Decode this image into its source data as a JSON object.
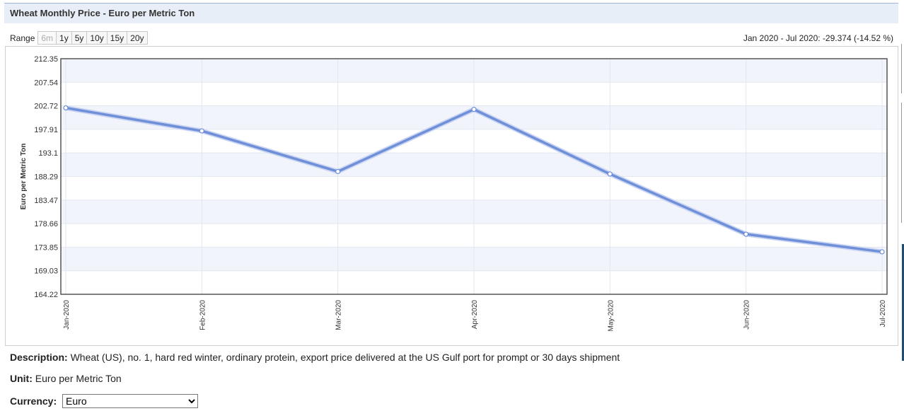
{
  "header": {
    "title": "Wheat Monthly Price - Euro per Metric Ton"
  },
  "range": {
    "label": "Range",
    "buttons": [
      "6m",
      "1y",
      "5y",
      "10y",
      "15y",
      "20y"
    ],
    "disabled": [
      "6m"
    ],
    "summary": "Jan 2020 - Jul 2020: -29.374 (-14.52 %)"
  },
  "info": {
    "description_label": "Description:",
    "description": "Wheat (US), no. 1, hard red winter, ordinary protein, export price delivered at the US Gulf port for prompt or 30 days shipment",
    "unit_label": "Unit:",
    "unit": "Euro per Metric Ton",
    "currency_label": "Currency:",
    "currency_selected": "Euro"
  },
  "chart_data": {
    "type": "line",
    "title": "",
    "xlabel": "",
    "ylabel": "Euro per Metric Ton",
    "categories": [
      "Jan-2020",
      "Feb-2020",
      "Mar-2020",
      "Apr-2020",
      "May-2020",
      "Jun-2020",
      "Jul-2020"
    ],
    "values": [
      202.3,
      197.6,
      189.3,
      202.0,
      188.8,
      176.5,
      172.9
    ],
    "ylim": [
      164.22,
      212.35
    ],
    "yticks": [
      "212.35",
      "207.54",
      "202.72",
      "197.91",
      "193.1",
      "188.29",
      "183.47",
      "178.66",
      "173.85",
      "169.03",
      "164.22"
    ],
    "grid": true,
    "line_color": "#6f8fd8"
  }
}
